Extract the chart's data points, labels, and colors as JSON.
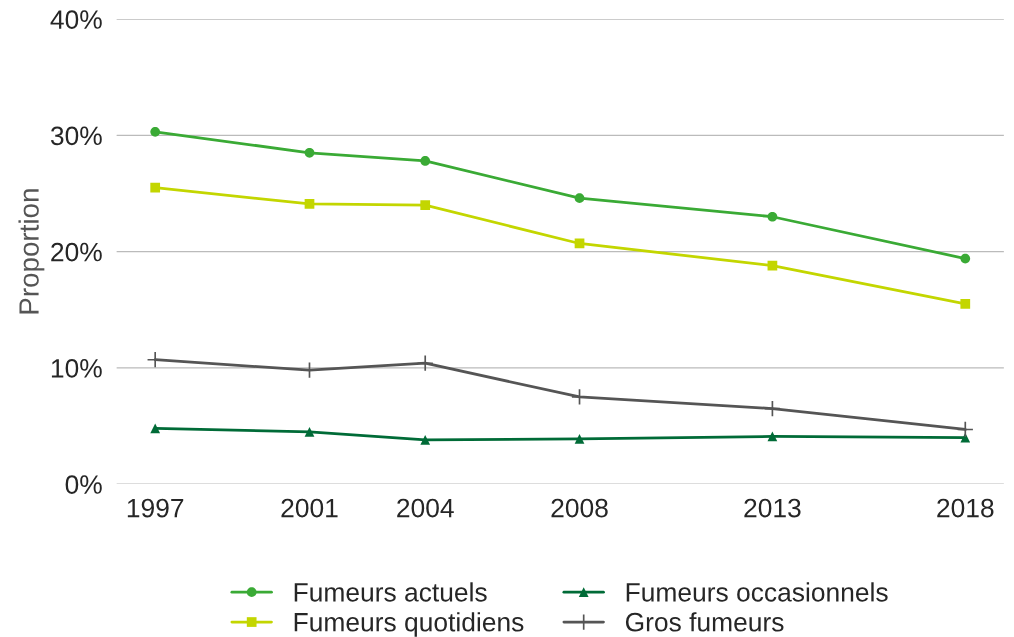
{
  "chart_data": {
    "type": "line",
    "ylabel": "Proportion",
    "x": [
      1997,
      2001,
      2004,
      2008,
      2013,
      2018
    ],
    "xlim": [
      1996,
      2019
    ],
    "xticks": [
      1997,
      2001,
      2004,
      2008,
      2013,
      2018
    ],
    "ylim": [
      0,
      0.4
    ],
    "yticks": [
      {
        "value": 0,
        "label": "0%"
      },
      {
        "value": 0.1,
        "label": "10%"
      },
      {
        "value": 0.2,
        "label": "20%"
      },
      {
        "value": 0.3,
        "label": "30%"
      },
      {
        "value": 0.4,
        "label": "40%"
      }
    ],
    "grid": "y",
    "legend": "bottom",
    "series": [
      {
        "name": "Fumeurs actuels",
        "color": "#3aaa35",
        "marker": "circle",
        "values": [
          0.303,
          0.285,
          0.278,
          0.246,
          0.23,
          0.194
        ]
      },
      {
        "name": "Fumeurs quotidiens",
        "color": "#c3d600",
        "marker": "square",
        "values": [
          0.255,
          0.241,
          0.24,
          0.207,
          0.188,
          0.155
        ]
      },
      {
        "name": "Fumeurs occasionnels",
        "color": "#006b37",
        "marker": "triangle",
        "values": [
          0.048,
          0.045,
          0.038,
          0.039,
          0.041,
          0.04
        ]
      },
      {
        "name": "Gros fumeurs",
        "color": "#555555",
        "marker": "cross",
        "values": [
          0.107,
          0.098,
          0.104,
          0.075,
          0.065,
          0.047
        ]
      }
    ]
  }
}
